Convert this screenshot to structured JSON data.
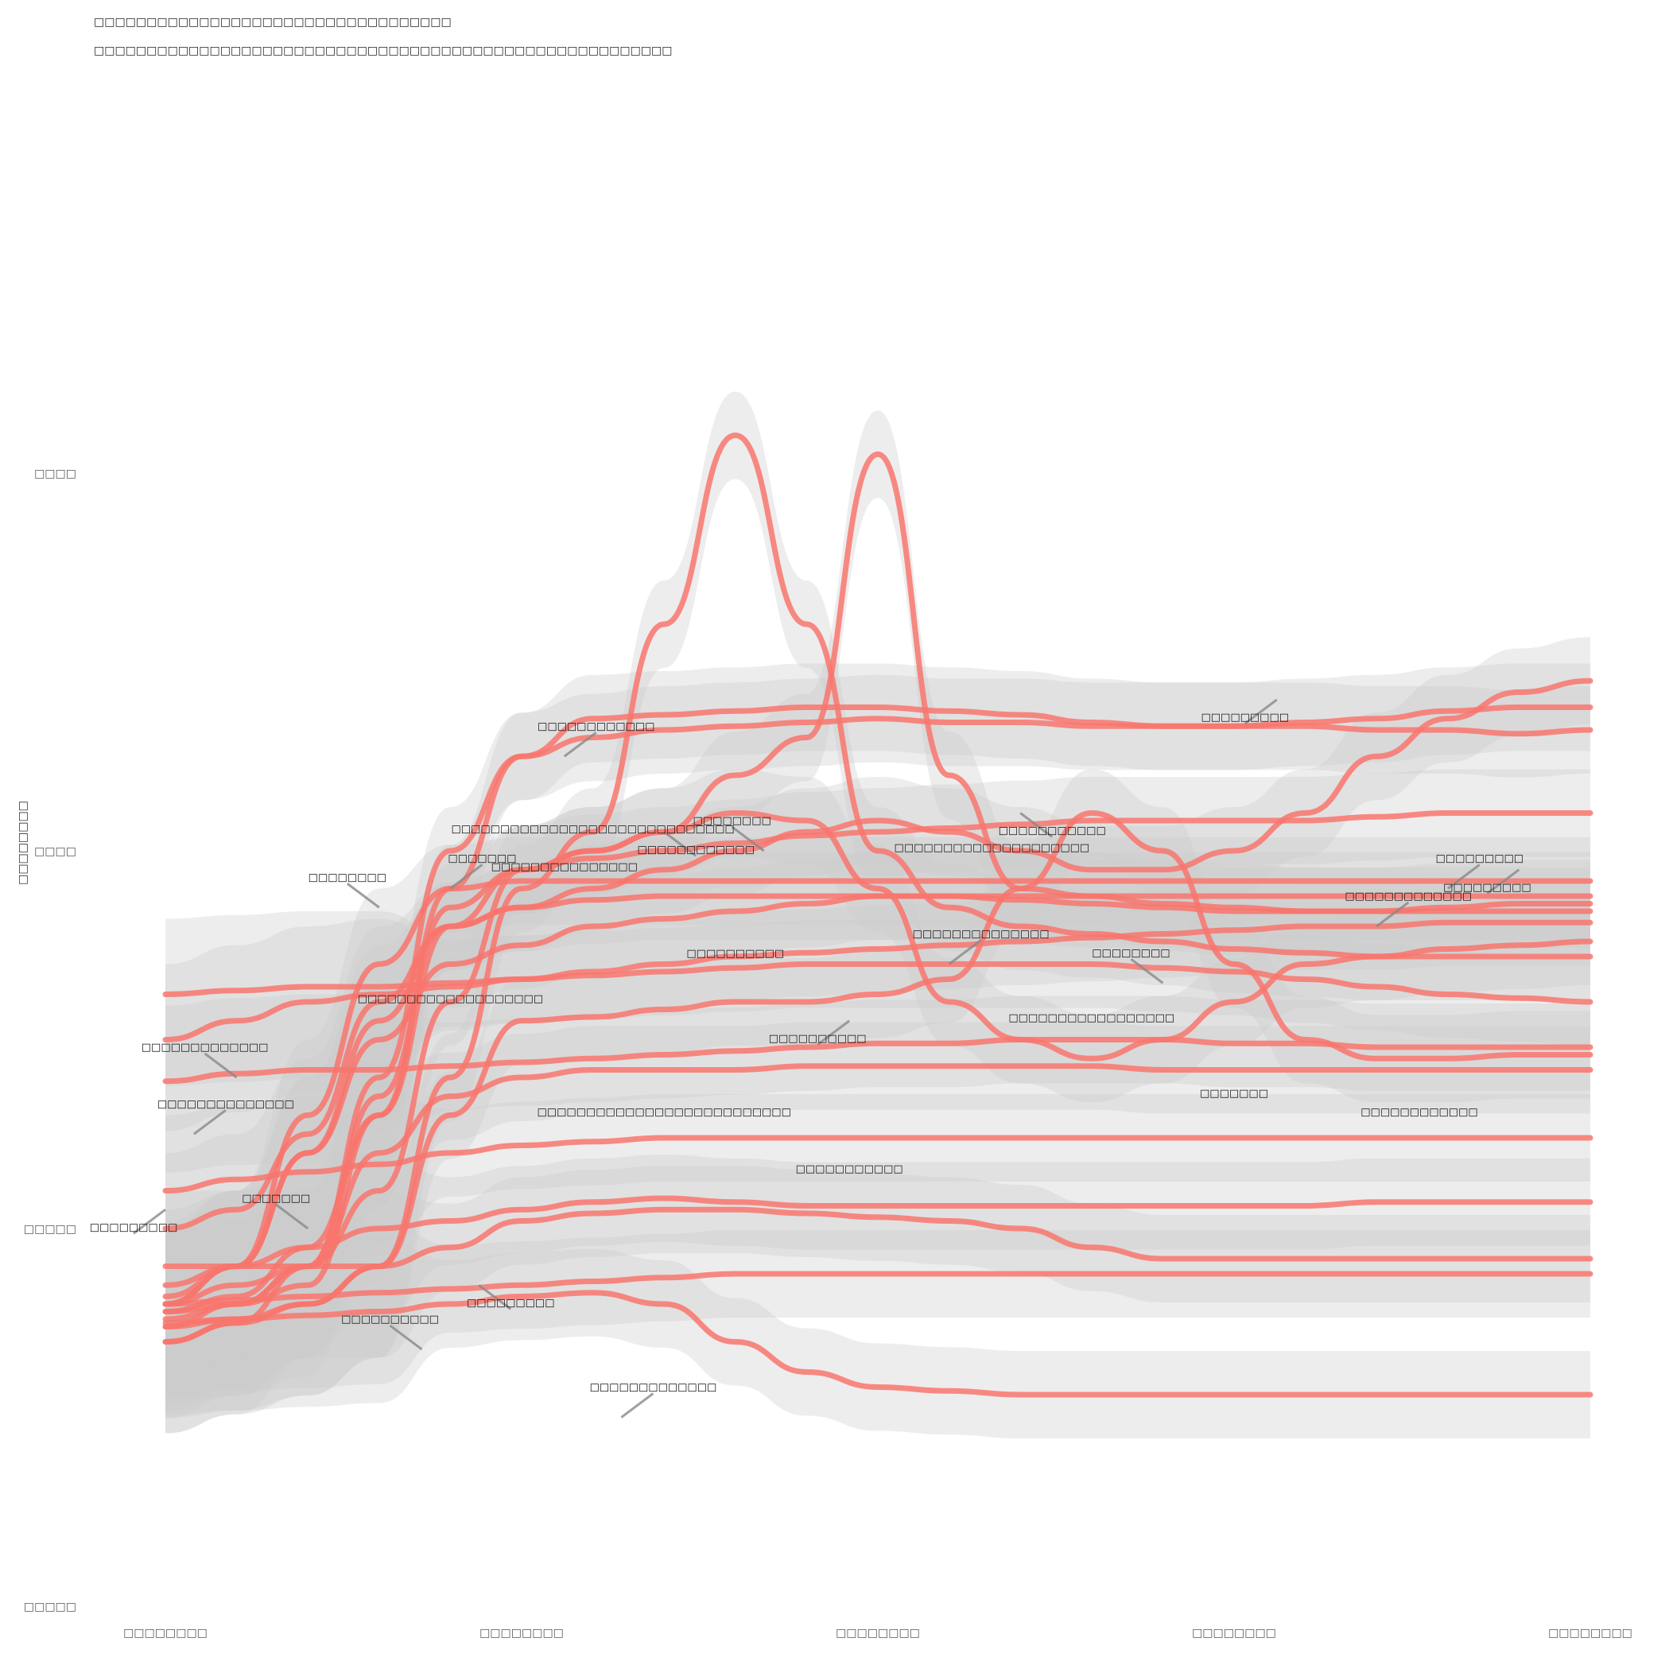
{
  "chart_data": {
    "type": "line",
    "title": "□□□□□□□□□□□□□□□□□□□□□□□□□□□□□□□□□□",
    "subtitle": "□□□□□□□□□□□□□□□□□□□□□□□□□□□□□□□□□□□□□□□□□□□□□□□□□□□□□□□",
    "xlabel": "",
    "ylabel": "□□□□□□□□",
    "x_ticks": [
      "□□□□□□□□",
      "□□□□□□□□",
      "□□□□□□□□",
      "□□□□□□□□",
      "□□□□□□□□"
    ],
    "y_ticks": [
      "□□□□",
      "□□□□",
      "□□□□□",
      "□□□□□"
    ],
    "xlim": [
      0,
      100
    ],
    "ylim": [
      -1,
      3
    ],
    "grid": false,
    "legend": "none",
    "colors": {
      "line": "#F8766D",
      "band": "#cccccc",
      "leader": "#888888"
    },
    "series": [
      {
        "values": [
          0.39,
          0.41,
          0.42,
          0.42,
          0.43,
          0.44,
          0.45,
          0.46,
          0.47,
          0.48,
          0.49,
          0.49,
          0.5,
          0.5,
          0.5,
          0.49,
          0.49,
          0.48,
          0.48,
          0.48,
          0.48
        ],
        "label": "□□□□□□□□□",
        "label_at": [
          0.0,
          0.05
        ]
      },
      {
        "values": [
          -0.26,
          -0.2,
          -0.1,
          0.4,
          1.0,
          1.25,
          1.3,
          1.32,
          1.33,
          1.34,
          1.35,
          1.34,
          1.34,
          1.33,
          1.33,
          1.33,
          1.33,
          1.32,
          1.32,
          1.31,
          1.32
        ],
        "label": "□□□□□□□",
        "label_at": [
          20.0,
          0.9
        ]
      },
      {
        "values": [
          0.62,
          0.63,
          0.64,
          0.64,
          0.65,
          0.66,
          0.67,
          0.68,
          0.69,
          0.7,
          0.7,
          0.7,
          0.7,
          0.7,
          0.69,
          0.68,
          0.66,
          0.64,
          0.62,
          0.61,
          0.6
        ],
        "label": "□□□□□□□□",
        "label_at": [
          15.0,
          0.85
        ]
      },
      {
        "values": [
          -0.3,
          -0.25,
          -0.2,
          -0.1,
          0.4,
          0.9,
          1.05,
          1.6,
          2.1,
          1.6,
          1.0,
          0.85,
          0.8,
          0.78,
          0.76,
          0.74,
          0.73,
          0.72,
          0.72,
          0.72,
          0.72
        ],
        "label": "□□□□□□□□□□□□",
        "label_at": [
          35.0,
          1.05
        ]
      },
      {
        "values": [
          -0.2,
          -0.15,
          -0.1,
          0.1,
          0.6,
          0.95,
          1.0,
          1.05,
          1.2,
          1.3,
          2.05,
          1.2,
          0.9,
          0.88,
          0.86,
          0.85,
          0.84,
          0.84,
          0.84,
          0.84,
          0.84
        ],
        "label": "□□□□□□□□",
        "label_at": [
          42.0,
          1.0
        ]
      },
      {
        "values": [
          -0.22,
          -0.18,
          -0.05,
          0.3,
          0.9,
          1.25,
          1.35,
          1.36,
          1.37,
          1.38,
          1.38,
          1.37,
          1.36,
          1.34,
          1.33,
          1.33,
          1.34,
          1.35,
          1.37,
          1.38,
          1.38
        ],
        "label": "□□□□□□□□□□□□",
        "label_at": [
          28.0,
          1.25
        ]
      },
      {
        "values": [
          -0.26,
          -0.24,
          -0.2,
          -0.1,
          0.3,
          0.55,
          0.56,
          0.58,
          0.6,
          0.6,
          0.62,
          0.66,
          0.9,
          1.1,
          1.0,
          0.7,
          0.5,
          0.45,
          0.45,
          0.46,
          0.46
        ],
        "label": "□□□□□□□□□□",
        "label_at": [
          48.0,
          0.55
        ]
      },
      {
        "values": [
          0.1,
          0.13,
          0.15,
          0.17,
          0.2,
          0.22,
          0.23,
          0.24,
          0.24,
          0.24,
          0.24,
          0.24,
          0.24,
          0.24,
          0.24,
          0.24,
          0.24,
          0.24,
          0.24,
          0.24,
          0.24
        ],
        "label": "□□□□□□□□□□□□□□",
        "label_at": [
          2.0,
          0.25
        ]
      },
      {
        "values": [
          -0.15,
          -0.1,
          -0.05,
          0.0,
          0.02,
          0.05,
          0.07,
          0.08,
          0.07,
          0.06,
          0.06,
          0.06,
          0.06,
          0.06,
          0.06,
          0.06,
          0.06,
          0.07,
          0.07,
          0.07,
          0.07
        ],
        "label": "□□□□□□□",
        "label_at": [
          10.0,
          0.0
        ]
      },
      {
        "values": [
          -0.1,
          -0.1,
          -0.1,
          -0.1,
          -0.05,
          0.02,
          0.04,
          0.05,
          0.05,
          0.04,
          0.03,
          0.02,
          0.0,
          -0.05,
          -0.08,
          -0.08,
          -0.08,
          -0.08,
          -0.08,
          -0.08,
          -0.08
        ],
        "label": "□□□□□□□□□",
        "label_at": [
          22.0,
          -0.15
        ]
      },
      {
        "values": [
          -0.2,
          -0.19,
          -0.18,
          -0.17,
          -0.16,
          -0.15,
          -0.14,
          -0.13,
          -0.12,
          -0.12,
          -0.12,
          -0.12,
          -0.12,
          -0.12,
          -0.12,
          -0.12,
          -0.12,
          -0.12,
          -0.12,
          -0.12,
          -0.12
        ],
        "label": "□□□□□□□□□□",
        "label_at": [
          18.0,
          -0.32
        ]
      },
      {
        "values": [
          -0.25,
          -0.24,
          -0.23,
          -0.22,
          -0.2,
          -0.18,
          -0.17,
          -0.2,
          -0.3,
          -0.38,
          -0.42,
          -0.43,
          -0.44,
          -0.44,
          -0.44,
          -0.44,
          -0.44,
          -0.44,
          -0.44,
          -0.44,
          -0.44
        ],
        "label": "□□□□□□□□□□□□□",
        "label_at": [
          32.0,
          -0.5
        ]
      },
      {
        "values": [
          0.0,
          0.05,
          0.25,
          0.6,
          0.8,
          0.85,
          0.9,
          0.95,
          1.0,
          1.05,
          1.08,
          1.05,
          1.0,
          0.95,
          0.95,
          1.0,
          1.1,
          1.25,
          1.35,
          1.42,
          1.45
        ],
        "label": "□□□□□□□□□",
        "label_at": [
          78.0,
          1.4
        ]
      },
      {
        "values": [
          -0.2,
          -0.1,
          0.2,
          0.5,
          0.7,
          0.75,
          0.8,
          0.82,
          0.84,
          0.86,
          0.88,
          0.88,
          0.87,
          0.86,
          0.85,
          0.84,
          0.84,
          0.84,
          0.85,
          0.86,
          0.86
        ],
        "label": "□□□□□□□□□",
        "label_at": [
          90.0,
          0.9
        ]
      },
      {
        "values": [
          -0.3,
          -0.25,
          -0.1,
          0.2,
          0.35,
          0.4,
          0.42,
          0.42,
          0.42,
          0.43,
          0.43,
          0.43,
          0.43,
          0.43,
          0.42,
          0.42,
          0.42,
          0.42,
          0.42,
          0.42,
          0.42
        ],
        "label": "□□□□□□□□□□□□□",
        "label_at": [
          5.0,
          0.4
        ]
      },
      {
        "values": [
          -0.22,
          -0.2,
          -0.15,
          0.3,
          0.8,
          0.95,
          0.98,
          1.0,
          1.02,
          1.04,
          1.05,
          1.06,
          1.07,
          1.08,
          1.08,
          1.08,
          1.08,
          1.09,
          1.1,
          1.1,
          1.1
        ],
        "label": "□□□□□□□□□□□",
        "label_at": [
          60.0,
          1.1
        ]
      },
      {
        "values": [
          -0.24,
          -0.2,
          -0.1,
          0.35,
          0.85,
          0.95,
          1.0,
          1.05,
          1.1,
          1.08,
          0.9,
          0.6,
          0.5,
          0.45,
          0.5,
          0.6,
          0.7,
          0.72,
          0.74,
          0.75,
          0.76
        ],
        "label": "□□□□□□□□",
        "label_at": [
          70.0,
          0.65
        ]
      },
      {
        "values": [
          0.5,
          0.55,
          0.6,
          0.62,
          0.64,
          0.66,
          0.68,
          0.7,
          0.72,
          0.73,
          0.74,
          0.75,
          0.76,
          0.77,
          0.78,
          0.79,
          0.8,
          0.8,
          0.81,
          0.81,
          0.81
        ],
        "label": "□□□□□□□□□□□□□□",
        "label_at": [
          55.0,
          0.7
        ]
      },
      {
        "values": [
          -0.2,
          -0.1,
          0.3,
          0.7,
          0.9,
          0.92,
          0.92,
          0.92,
          0.92,
          0.92,
          0.92,
          0.92,
          0.92,
          0.92,
          0.92,
          0.92,
          0.92,
          0.92,
          0.92,
          0.92,
          0.92
        ],
        "label": "□□□□□□□□□",
        "label_at": [
          95.0,
          0.95
        ]
      },
      {
        "values": [
          -0.18,
          -0.1,
          0.2,
          0.55,
          0.8,
          0.85,
          0.87,
          0.88,
          0.88,
          0.88,
          0.88,
          0.88,
          0.88,
          0.88,
          0.88,
          0.88,
          0.88,
          0.88,
          0.88,
          0.88,
          0.88
        ],
        "label": "□□□□□□□□□□□□□",
        "label_at": [
          85.0,
          0.8
        ]
      }
    ],
    "data_labels": [
      "□□□□□□□□□□□□□□□",
      "□□□□□□□□□□□□□□□□□□□□",
      "□□□□□□□□□□",
      "□□□□□□□□□□□□□□□□□",
      "□□□□□□□□□□□□□□□□□□□□□□□□□□",
      "□□□□□□□□□□□",
      "□□□□□□□□□□□□□□□□□□□",
      "□□□□□□□",
      "□□□□□□□□□□□□□□□□□□□□□□□□□□□□□",
      "□□□□□□□□□□□□"
    ]
  }
}
